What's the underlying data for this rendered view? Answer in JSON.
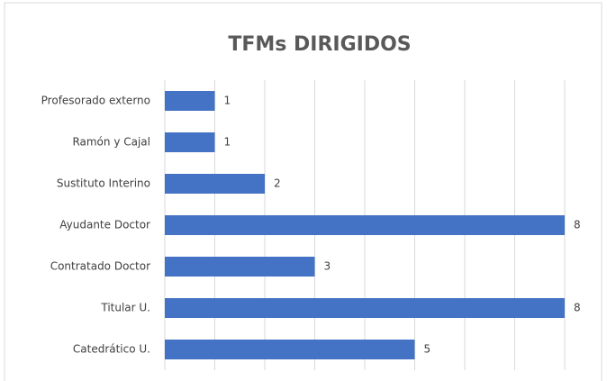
{
  "chart_data": {
    "type": "bar",
    "orientation": "horizontal",
    "title": "TFMs DIRIGIDOS",
    "categories": [
      "Profesorado externo",
      "Ramón y Cajal",
      "Sustituto Interino",
      "Ayudante Doctor",
      "Contratado Doctor",
      "Titular U.",
      "Catedrático U."
    ],
    "values": [
      1,
      1,
      2,
      8,
      3,
      8,
      5
    ],
    "color": "#4472c4",
    "xlim": [
      0,
      8
    ],
    "xticks": [
      0,
      1,
      2,
      3,
      4,
      5,
      6,
      7,
      8
    ],
    "grid": true
  }
}
